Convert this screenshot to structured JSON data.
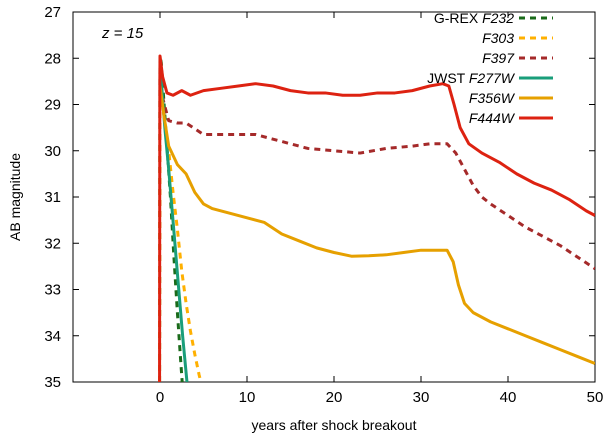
{
  "chart_data": {
    "type": "line",
    "title": "",
    "xlabel": "years after shock breakout",
    "ylabel": "AB magnitude",
    "xlim": [
      -10,
      50
    ],
    "ylim": [
      27,
      35
    ],
    "y_inverted": true,
    "x_ticks": [
      "0",
      "10",
      "20",
      "30",
      "40",
      "50"
    ],
    "y_ticks": [
      "27",
      "28",
      "29",
      "30",
      "31",
      "32",
      "33",
      "34",
      "35"
    ],
    "grid": false,
    "legend_position": "top-right",
    "annotations": [
      "z = 15"
    ],
    "legend_groups": [
      {
        "instrument": "G-REX",
        "series_index": 0
      },
      {
        "instrument": "JWST",
        "series_index": 3
      }
    ],
    "series": [
      {
        "name": "F232",
        "color": "#1a6b1a",
        "dash": true,
        "points": [
          [
            -0.05,
            35
          ],
          [
            -0.02,
            29.5
          ],
          [
            0,
            27.95
          ],
          [
            0.15,
            28.1
          ],
          [
            0.4,
            28.8
          ],
          [
            0.8,
            29.9
          ],
          [
            1.2,
            31.0
          ],
          [
            1.6,
            32.3
          ],
          [
            2.0,
            33.5
          ],
          [
            2.4,
            34.6
          ],
          [
            2.55,
            35
          ]
        ]
      },
      {
        "name": "F303",
        "color": "#ffb000",
        "dash": true,
        "points": [
          [
            -0.05,
            35
          ],
          [
            0,
            28.5
          ],
          [
            0.5,
            29.3
          ],
          [
            1.0,
            30.0
          ],
          [
            1.5,
            30.9
          ],
          [
            2.0,
            31.7
          ],
          [
            2.5,
            32.6
          ],
          [
            3.0,
            33.3
          ],
          [
            3.5,
            33.9
          ],
          [
            4.0,
            34.4
          ],
          [
            4.5,
            34.85
          ],
          [
            4.7,
            35
          ]
        ]
      },
      {
        "name": "F397",
        "color": "#a52a2a",
        "dash": true,
        "points": [
          [
            0,
            28.6
          ],
          [
            0.5,
            29.0
          ],
          [
            1.0,
            29.35
          ],
          [
            2.0,
            29.4
          ],
          [
            3.0,
            29.4
          ],
          [
            5.0,
            29.65
          ],
          [
            8.0,
            29.65
          ],
          [
            11.0,
            29.65
          ],
          [
            14.0,
            29.8
          ],
          [
            17.0,
            29.95
          ],
          [
            20.0,
            30.0
          ],
          [
            23.0,
            30.05
          ],
          [
            26.0,
            29.95
          ],
          [
            29.0,
            29.9
          ],
          [
            31.0,
            29.85
          ],
          [
            33.0,
            29.85
          ],
          [
            34.0,
            30.05
          ],
          [
            35.0,
            30.4
          ],
          [
            36.0,
            30.75
          ],
          [
            37.0,
            31.0
          ],
          [
            38.0,
            31.15
          ],
          [
            40.0,
            31.4
          ],
          [
            42.0,
            31.65
          ],
          [
            44.0,
            31.85
          ],
          [
            46.0,
            32.05
          ],
          [
            48.0,
            32.3
          ],
          [
            50.0,
            32.55
          ]
        ]
      },
      {
        "name": "F277W",
        "color": "#1a9e7a",
        "dash": false,
        "points": [
          [
            0,
            28.0
          ],
          [
            0.3,
            28.9
          ],
          [
            0.6,
            29.6
          ],
          [
            1.0,
            30.4
          ],
          [
            1.4,
            31.3
          ],
          [
            1.8,
            32.2
          ],
          [
            2.2,
            33.1
          ],
          [
            2.6,
            34.0
          ],
          [
            3.0,
            34.8
          ],
          [
            3.1,
            35
          ]
        ]
      },
      {
        "name": "F356W",
        "color": "#e6a000",
        "dash": false,
        "points": [
          [
            0,
            28.6
          ],
          [
            0.5,
            29.3
          ],
          [
            1.0,
            29.9
          ],
          [
            2.0,
            30.3
          ],
          [
            3.0,
            30.5
          ],
          [
            4.0,
            30.9
          ],
          [
            5.0,
            31.15
          ],
          [
            6.0,
            31.25
          ],
          [
            8.0,
            31.35
          ],
          [
            10.0,
            31.45
          ],
          [
            12.0,
            31.55
          ],
          [
            14.0,
            31.8
          ],
          [
            16.0,
            31.95
          ],
          [
            18.0,
            32.1
          ],
          [
            20.0,
            32.2
          ],
          [
            22.0,
            32.28
          ],
          [
            24.0,
            32.27
          ],
          [
            26.0,
            32.25
          ],
          [
            28.0,
            32.2
          ],
          [
            30.0,
            32.15
          ],
          [
            32.0,
            32.15
          ],
          [
            33.0,
            32.15
          ],
          [
            33.7,
            32.4
          ],
          [
            34.3,
            32.9
          ],
          [
            35.0,
            33.3
          ],
          [
            36.0,
            33.5
          ],
          [
            38.0,
            33.7
          ],
          [
            40.0,
            33.85
          ],
          [
            42.0,
            34.0
          ],
          [
            44.0,
            34.15
          ],
          [
            46.0,
            34.3
          ],
          [
            48.0,
            34.45
          ],
          [
            50.0,
            34.6
          ]
        ]
      },
      {
        "name": "F444W",
        "color": "#dd2211",
        "dash": false,
        "points": [
          [
            -0.05,
            35
          ],
          [
            -0.02,
            28.5
          ],
          [
            0,
            27.95
          ],
          [
            0.3,
            28.4
          ],
          [
            0.8,
            28.75
          ],
          [
            1.5,
            28.8
          ],
          [
            2.5,
            28.7
          ],
          [
            3.5,
            28.8
          ],
          [
            5.0,
            28.7
          ],
          [
            7.0,
            28.65
          ],
          [
            9.0,
            28.6
          ],
          [
            11.0,
            28.55
          ],
          [
            13.0,
            28.6
          ],
          [
            15.0,
            28.7
          ],
          [
            17.0,
            28.75
          ],
          [
            19.0,
            28.75
          ],
          [
            21.0,
            28.8
          ],
          [
            23.0,
            28.8
          ],
          [
            25.0,
            28.75
          ],
          [
            27.0,
            28.75
          ],
          [
            29.0,
            28.7
          ],
          [
            31.0,
            28.6
          ],
          [
            32.5,
            28.55
          ],
          [
            33.2,
            28.6
          ],
          [
            33.8,
            29.0
          ],
          [
            34.5,
            29.5
          ],
          [
            35.5,
            29.85
          ],
          [
            37.0,
            30.05
          ],
          [
            39.0,
            30.25
          ],
          [
            41.0,
            30.5
          ],
          [
            43.0,
            30.7
          ],
          [
            45.0,
            30.85
          ],
          [
            47.0,
            31.05
          ],
          [
            49.0,
            31.3
          ],
          [
            50.0,
            31.4
          ]
        ]
      }
    ]
  }
}
